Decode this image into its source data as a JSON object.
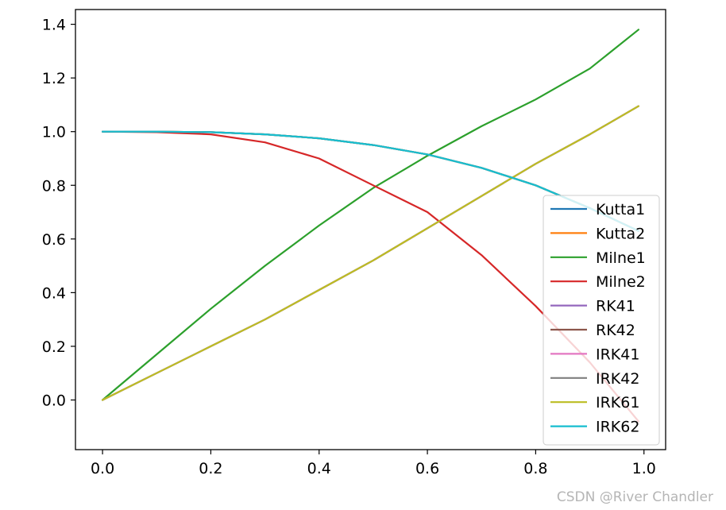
{
  "chart_data": {
    "type": "line",
    "title": "",
    "xlabel": "",
    "ylabel": "",
    "xlim": [
      -0.05,
      1.04
    ],
    "ylim": [
      -0.185,
      1.455
    ],
    "xticks": [
      0.0,
      0.2,
      0.4,
      0.6,
      0.8,
      1.0
    ],
    "xtick_labels": [
      "0.0",
      "0.2",
      "0.4",
      "0.6",
      "0.8",
      "1.0"
    ],
    "yticks": [
      0.0,
      0.2,
      0.4,
      0.6,
      0.8,
      1.0,
      1.2,
      1.4
    ],
    "ytick_labels": [
      "0.0",
      "0.2",
      "0.4",
      "0.6",
      "0.8",
      "1.0",
      "1.2",
      "1.4"
    ],
    "legend_position": "lower right",
    "grid": false,
    "x": [
      0.0,
      0.1,
      0.2,
      0.3,
      0.4,
      0.5,
      0.6,
      0.7,
      0.8,
      0.9,
      0.99
    ],
    "series": [
      {
        "name": "Kutta1",
        "color": "#1f77b4",
        "values": [
          0.0,
          0.1,
          0.2,
          0.3,
          0.41,
          0.52,
          0.64,
          0.76,
          0.88,
          0.99,
          1.095
        ]
      },
      {
        "name": "Kutta2",
        "color": "#ff7f0e",
        "values": [
          1.0,
          1.0,
          0.998,
          0.99,
          0.975,
          0.95,
          0.915,
          0.865,
          0.8,
          0.715,
          0.63
        ]
      },
      {
        "name": "Milne1",
        "color": "#2ca02c",
        "values": [
          0.0,
          0.17,
          0.34,
          0.5,
          0.65,
          0.79,
          0.91,
          1.02,
          1.12,
          1.235,
          1.38
        ]
      },
      {
        "name": "Milne2",
        "color": "#d62728",
        "values": [
          1.0,
          0.998,
          0.99,
          0.96,
          0.9,
          0.8,
          0.7,
          0.54,
          0.35,
          0.14,
          -0.08
        ]
      },
      {
        "name": "RK41",
        "color": "#9467bd",
        "values": [
          0.0,
          0.1,
          0.2,
          0.3,
          0.41,
          0.52,
          0.64,
          0.76,
          0.88,
          0.99,
          1.095
        ]
      },
      {
        "name": "RK42",
        "color": "#8c564b",
        "values": [
          1.0,
          1.0,
          0.998,
          0.99,
          0.975,
          0.95,
          0.915,
          0.865,
          0.8,
          0.715,
          0.63
        ]
      },
      {
        "name": "IRK41",
        "color": "#e377c2",
        "values": [
          0.0,
          0.1,
          0.2,
          0.3,
          0.41,
          0.52,
          0.64,
          0.76,
          0.88,
          0.99,
          1.095
        ]
      },
      {
        "name": "IRK42",
        "color": "#7f7f7f",
        "values": [
          1.0,
          1.0,
          0.998,
          0.99,
          0.975,
          0.95,
          0.915,
          0.865,
          0.8,
          0.715,
          0.63
        ]
      },
      {
        "name": "IRK61",
        "color": "#bcbd22",
        "values": [
          0.0,
          0.1,
          0.2,
          0.3,
          0.41,
          0.52,
          0.64,
          0.76,
          0.88,
          0.99,
          1.095
        ]
      },
      {
        "name": "IRK62",
        "color": "#17becf",
        "values": [
          1.0,
          1.0,
          0.998,
          0.99,
          0.975,
          0.95,
          0.915,
          0.865,
          0.8,
          0.715,
          0.63
        ]
      }
    ]
  },
  "watermark": "CSDN @River Chandler"
}
